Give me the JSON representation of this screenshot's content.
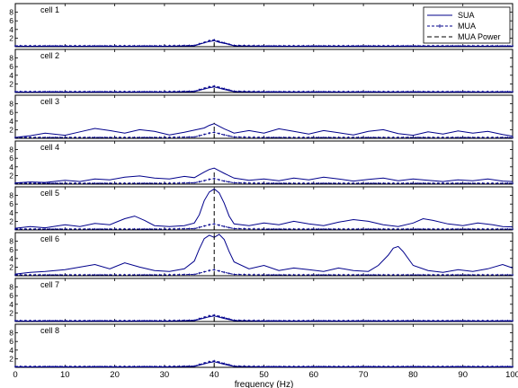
{
  "chart_data": {
    "type": "line",
    "xlabel": "frequency (Hz)",
    "xlim": [
      0,
      100
    ],
    "ylim": [
      0,
      10
    ],
    "x_ticks": [
      0,
      10,
      20,
      30,
      40,
      50,
      60,
      70,
      80,
      90,
      100
    ],
    "y_ticks": [
      2,
      4,
      6,
      8
    ],
    "grid": false,
    "legend": {
      "placement": "top-right",
      "entries": [
        {
          "name": "SUA",
          "style": "solid",
          "color": "#00008b"
        },
        {
          "name": "MUA",
          "style": "dash-dot-plus",
          "color": "#00008b"
        },
        {
          "name": "MUA Power",
          "style": "dashed",
          "color": "#000000"
        }
      ]
    },
    "panels": [
      {
        "label": "cell 1",
        "series": [
          {
            "name": "SUA",
            "x": [
              0,
              10,
              20,
              30,
              36,
              38,
              39,
              40,
              41,
              42,
              44,
              50,
              60,
              70,
              80,
              90,
              100
            ],
            "values": [
              0.1,
              0.1,
              0.1,
              0.1,
              0.2,
              0.9,
              1.2,
              1.4,
              1.0,
              0.8,
              0.2,
              0.1,
              0.1,
              0.1,
              0.1,
              0.1,
              0.1
            ]
          },
          {
            "name": "MUA",
            "x": [
              0,
              10,
              20,
              30,
              36,
              38,
              39,
              40,
              41,
              42,
              44,
              50,
              60,
              70,
              80,
              90,
              100
            ],
            "values": [
              0.2,
              0.2,
              0.2,
              0.2,
              0.3,
              1.0,
              1.4,
              1.6,
              1.2,
              0.9,
              0.3,
              0.2,
              0.2,
              0.2,
              0.2,
              0.2,
              0.2
            ]
          },
          {
            "name": "MUA Power",
            "x": [
              40,
              40
            ],
            "values": [
              0,
              1.6
            ]
          }
        ]
      },
      {
        "label": "cell 2",
        "series": [
          {
            "name": "SUA",
            "x": [
              0,
              10,
              20,
              30,
              36,
              38,
              39,
              40,
              41,
              42,
              44,
              50,
              60,
              70,
              80,
              90,
              100
            ],
            "values": [
              0.1,
              0.1,
              0.1,
              0.1,
              0.2,
              0.8,
              1.1,
              1.3,
              1.0,
              0.7,
              0.2,
              0.1,
              0.1,
              0.1,
              0.1,
              0.1,
              0.1
            ]
          },
          {
            "name": "MUA",
            "x": [
              0,
              10,
              20,
              30,
              36,
              38,
              39,
              40,
              41,
              42,
              44,
              50,
              60,
              70,
              80,
              90,
              100
            ],
            "values": [
              0.2,
              0.2,
              0.2,
              0.2,
              0.3,
              1.0,
              1.3,
              1.5,
              1.2,
              0.9,
              0.3,
              0.2,
              0.2,
              0.2,
              0.2,
              0.2,
              0.2
            ]
          },
          {
            "name": "MUA Power",
            "x": [
              40,
              40
            ],
            "values": [
              0,
              1.5
            ]
          }
        ]
      },
      {
        "label": "cell 3",
        "series": [
          {
            "name": "SUA",
            "x": [
              0,
              3,
              6,
              10,
              13,
              16,
              19,
              22,
              25,
              28,
              31,
              34,
              36,
              38,
              39,
              40,
              41,
              42,
              44,
              47,
              50,
              53,
              56,
              59,
              62,
              65,
              68,
              71,
              74,
              77,
              80,
              83,
              86,
              89,
              92,
              95,
              98,
              100
            ],
            "values": [
              0.2,
              0.6,
              1.2,
              0.7,
              1.5,
              2.3,
              1.8,
              1.2,
              2.0,
              1.6,
              0.8,
              1.4,
              1.9,
              2.4,
              3.0,
              3.4,
              2.8,
              2.2,
              1.2,
              1.8,
              1.2,
              2.2,
              1.6,
              1.0,
              1.8,
              1.3,
              0.8,
              1.6,
              2.0,
              1.1,
              0.7,
              1.5,
              1.0,
              1.7,
              1.2,
              1.6,
              0.9,
              0.5
            ]
          },
          {
            "name": "MUA",
            "x": [
              0,
              10,
              20,
              30,
              36,
              38,
              39,
              40,
              41,
              42,
              44,
              50,
              60,
              70,
              80,
              90,
              100
            ],
            "values": [
              0.2,
              0.2,
              0.2,
              0.2,
              0.3,
              0.9,
              1.2,
              1.4,
              1.1,
              0.8,
              0.3,
              0.2,
              0.2,
              0.2,
              0.2,
              0.2,
              0.2
            ]
          },
          {
            "name": "MUA Power",
            "x": [
              40,
              40
            ],
            "values": [
              0,
              3.6
            ]
          }
        ]
      },
      {
        "label": "cell 4",
        "series": [
          {
            "name": "SUA",
            "x": [
              0,
              3,
              6,
              10,
              13,
              16,
              19,
              22,
              25,
              28,
              31,
              34,
              36,
              38,
              39,
              40,
              41,
              42,
              44,
              47,
              50,
              53,
              56,
              59,
              62,
              65,
              68,
              71,
              74,
              77,
              80,
              83,
              86,
              89,
              92,
              95,
              98,
              100
            ],
            "values": [
              0.3,
              0.5,
              0.4,
              0.9,
              0.6,
              1.2,
              1.0,
              1.6,
              1.9,
              1.4,
              1.2,
              1.8,
              1.5,
              2.8,
              3.4,
              3.7,
              3.1,
              2.5,
              1.4,
              0.9,
              1.2,
              0.8,
              1.4,
              1.0,
              1.6,
              1.2,
              0.7,
              1.1,
              1.4,
              0.8,
              1.2,
              0.9,
              0.6,
              1.0,
              0.8,
              1.2,
              0.7,
              0.6
            ]
          },
          {
            "name": "MUA",
            "x": [
              0,
              10,
              20,
              30,
              36,
              38,
              39,
              40,
              41,
              42,
              44,
              50,
              60,
              70,
              80,
              90,
              100
            ],
            "values": [
              0.2,
              0.2,
              0.2,
              0.2,
              0.3,
              0.8,
              1.1,
              1.3,
              1.0,
              0.7,
              0.3,
              0.2,
              0.2,
              0.2,
              0.2,
              0.2,
              0.2
            ]
          },
          {
            "name": "MUA Power",
            "x": [
              40,
              40
            ],
            "values": [
              0,
              3.3
            ]
          }
        ]
      },
      {
        "label": "cell 5",
        "series": [
          {
            "name": "SUA",
            "x": [
              0,
              3,
              6,
              10,
              13,
              16,
              19,
              22,
              24,
              26,
              28,
              31,
              34,
              36,
              37,
              38,
              39,
              40,
              41,
              42,
              43,
              44,
              47,
              50,
              53,
              56,
              59,
              62,
              65,
              68,
              71,
              74,
              77,
              80,
              82,
              84,
              87,
              90,
              93,
              96,
              98,
              100
            ],
            "values": [
              0.4,
              0.8,
              0.5,
              1.2,
              0.8,
              1.5,
              1.2,
              2.6,
              3.2,
              2.2,
              1.0,
              0.8,
              1.0,
              1.6,
              3.5,
              6.8,
              8.8,
              9.5,
              8.6,
              6.2,
              3.2,
              1.4,
              1.0,
              1.6,
              1.2,
              2.0,
              1.4,
              1.0,
              1.8,
              2.4,
              2.0,
              1.2,
              0.8,
              1.6,
              2.6,
              2.2,
              1.4,
              1.0,
              1.6,
              1.2,
              0.8,
              0.7
            ]
          },
          {
            "name": "MUA",
            "x": [
              0,
              10,
              20,
              30,
              36,
              38,
              39,
              40,
              41,
              42,
              44,
              50,
              60,
              70,
              80,
              90,
              100
            ],
            "values": [
              0.2,
              0.2,
              0.2,
              0.2,
              0.3,
              0.9,
              1.2,
              1.4,
              1.1,
              0.8,
              0.3,
              0.2,
              0.2,
              0.2,
              0.2,
              0.2,
              0.2
            ]
          },
          {
            "name": "MUA Power",
            "x": [
              40,
              40
            ],
            "values": [
              0,
              9.5
            ]
          }
        ]
      },
      {
        "label": "cell 6",
        "series": [
          {
            "name": "SUA",
            "x": [
              0,
              3,
              6,
              10,
              13,
              16,
              19,
              22,
              25,
              28,
              31,
              34,
              36,
              37,
              38,
              39,
              40,
              41,
              42,
              43,
              44,
              47,
              50,
              53,
              56,
              59,
              62,
              65,
              68,
              71,
              73,
              75,
              76,
              77,
              78,
              80,
              83,
              86,
              89,
              92,
              95,
              98,
              100
            ],
            "values": [
              0.4,
              0.8,
              1.0,
              1.4,
              2.0,
              2.6,
              1.6,
              3.0,
              2.0,
              1.2,
              1.0,
              1.6,
              3.4,
              6.2,
              8.6,
              9.4,
              8.9,
              9.6,
              8.4,
              5.6,
              3.2,
              1.6,
              2.4,
              1.2,
              1.8,
              1.4,
              1.0,
              1.8,
              1.2,
              1.0,
              2.4,
              4.8,
              6.4,
              6.8,
              5.6,
              2.4,
              1.2,
              0.8,
              1.4,
              1.0,
              1.6,
              2.6,
              1.8
            ]
          },
          {
            "name": "MUA",
            "x": [
              0,
              10,
              20,
              30,
              36,
              38,
              39,
              40,
              41,
              42,
              44,
              50,
              60,
              70,
              80,
              90,
              100
            ],
            "values": [
              0.2,
              0.2,
              0.2,
              0.2,
              0.3,
              0.9,
              1.2,
              1.4,
              1.1,
              0.8,
              0.3,
              0.2,
              0.2,
              0.2,
              0.2,
              0.2,
              0.2
            ]
          },
          {
            "name": "MUA Power",
            "x": [
              40,
              40
            ],
            "values": [
              0,
              9.6
            ]
          }
        ]
      },
      {
        "label": "cell 7",
        "series": [
          {
            "name": "SUA",
            "x": [
              0,
              10,
              20,
              30,
              36,
              38,
              39,
              40,
              41,
              42,
              44,
              50,
              60,
              70,
              80,
              90,
              100
            ],
            "values": [
              0.1,
              0.1,
              0.1,
              0.1,
              0.2,
              0.8,
              1.1,
              1.3,
              1.0,
              0.7,
              0.2,
              0.1,
              0.1,
              0.1,
              0.1,
              0.1,
              0.1
            ]
          },
          {
            "name": "MUA",
            "x": [
              0,
              10,
              20,
              30,
              36,
              38,
              39,
              40,
              41,
              42,
              44,
              50,
              60,
              70,
              80,
              90,
              100
            ],
            "values": [
              0.2,
              0.2,
              0.2,
              0.2,
              0.3,
              1.0,
              1.3,
              1.5,
              1.2,
              0.9,
              0.3,
              0.2,
              0.2,
              0.2,
              0.2,
              0.2,
              0.2
            ]
          },
          {
            "name": "MUA Power",
            "x": [
              40,
              40
            ],
            "values": [
              0,
              1.5
            ]
          }
        ]
      },
      {
        "label": "cell 8",
        "series": [
          {
            "name": "SUA",
            "x": [
              0,
              10,
              20,
              30,
              36,
              38,
              39,
              40,
              41,
              42,
              44,
              50,
              60,
              70,
              80,
              90,
              100
            ],
            "values": [
              0.1,
              0.1,
              0.1,
              0.1,
              0.2,
              0.8,
              1.1,
              1.3,
              1.0,
              0.7,
              0.2,
              0.1,
              0.1,
              0.1,
              0.1,
              0.1,
              0.1
            ]
          },
          {
            "name": "MUA",
            "x": [
              0,
              10,
              20,
              30,
              36,
              38,
              39,
              40,
              41,
              42,
              44,
              50,
              60,
              70,
              80,
              90,
              100
            ],
            "values": [
              0.2,
              0.2,
              0.2,
              0.2,
              0.3,
              1.0,
              1.3,
              1.5,
              1.2,
              0.9,
              0.3,
              0.2,
              0.2,
              0.2,
              0.2,
              0.2,
              0.2
            ]
          },
          {
            "name": "MUA Power",
            "x": [
              40,
              40
            ],
            "values": [
              0,
              1.5
            ]
          }
        ]
      }
    ]
  }
}
